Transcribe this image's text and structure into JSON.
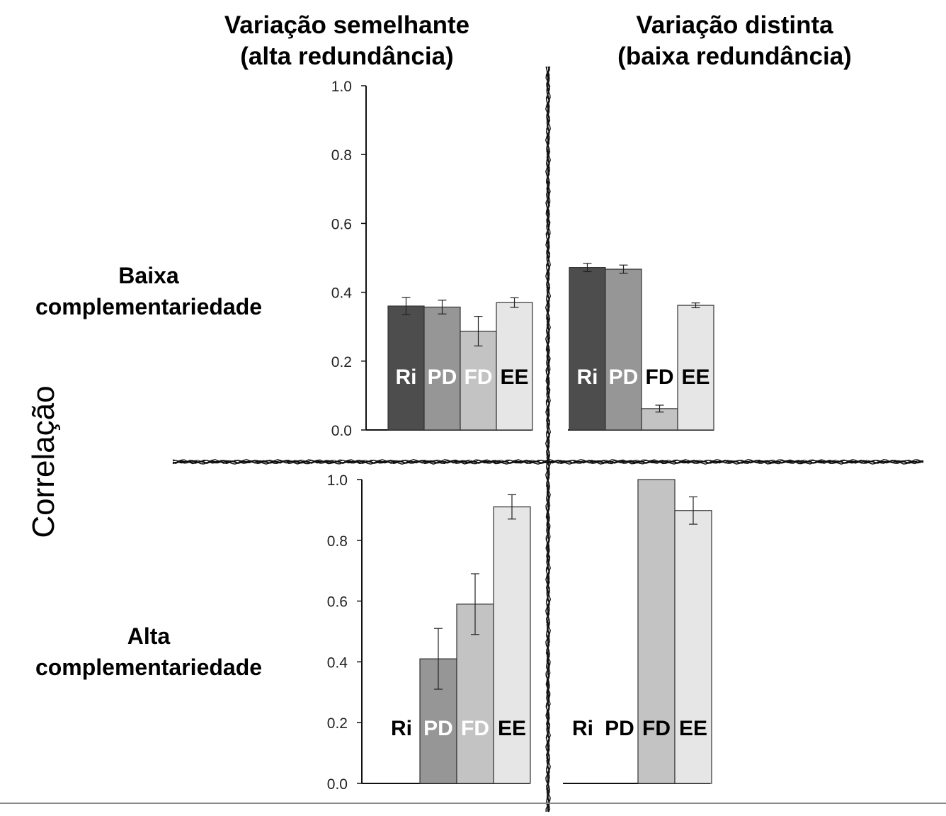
{
  "columns": {
    "left": {
      "line1": "Variação semelhante",
      "line2": "(alta redundância)"
    },
    "right": {
      "line1": "Variação distinta",
      "line2": "(baixa redundância)"
    }
  },
  "rows": {
    "top": {
      "line1": "Baixa",
      "line2": "complementariedade"
    },
    "bottom": {
      "line1": "Alta",
      "line2": "complementariedade"
    }
  },
  "y_title": "Correlação",
  "colors": {
    "Ri": "#4d4d4d",
    "PD": "#969696",
    "FD": "#c3c3c3",
    "EE": "#e6e6e6",
    "axis": "#111111",
    "divider": "#111111"
  },
  "chart_data": [
    {
      "type": "bar",
      "panel": "top-left",
      "categories": [
        "Ri",
        "PD",
        "FD",
        "EE"
      ],
      "values": [
        0.36,
        0.357,
        0.287,
        0.37
      ],
      "errors": [
        0.025,
        0.02,
        0.043,
        0.014
      ],
      "label_colors": [
        "#ffffff",
        "#ffffff",
        "#ffffff",
        "#000000"
      ],
      "ylim": [
        0,
        1.0
      ],
      "yticks": [
        "0.0",
        "0.2",
        "0.4",
        "0.6",
        "0.8",
        "1.0"
      ]
    },
    {
      "type": "bar",
      "panel": "top-right",
      "categories": [
        "Ri",
        "PD",
        "FD",
        "EE"
      ],
      "values": [
        0.472,
        0.467,
        0.062,
        0.362
      ],
      "errors": [
        0.012,
        0.012,
        0.01,
        0.007
      ],
      "label_colors": [
        "#ffffff",
        "#ffffff",
        "#000000",
        "#000000"
      ],
      "ylim": [
        0,
        1.0
      ],
      "yticks": []
    },
    {
      "type": "bar",
      "panel": "bottom-left",
      "categories": [
        "Ri",
        "PD",
        "FD",
        "EE"
      ],
      "values": [
        null,
        0.41,
        0.59,
        0.91
      ],
      "errors": [
        null,
        0.1,
        0.1,
        0.04
      ],
      "label_colors": [
        "#000000",
        "#ffffff",
        "#ffffff",
        "#000000"
      ],
      "ylim": [
        0,
        1.0
      ],
      "yticks": [
        "0.0",
        "0.2",
        "0.4",
        "0.6",
        "0.8",
        "1.0"
      ]
    },
    {
      "type": "bar",
      "panel": "bottom-right",
      "categories": [
        "Ri",
        "PD",
        "FD",
        "EE"
      ],
      "values": [
        null,
        null,
        1.0,
        0.898
      ],
      "errors": [
        null,
        null,
        0,
        0.045
      ],
      "label_colors": [
        "#000000",
        "#000000",
        "#000000",
        "#000000"
      ],
      "ylim": [
        0,
        1.0
      ],
      "yticks": []
    }
  ]
}
